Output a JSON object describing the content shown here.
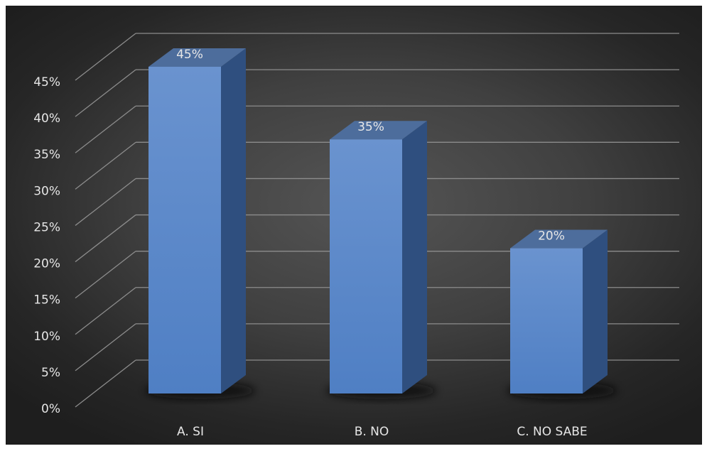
{
  "chart_data": {
    "type": "bar",
    "categories": [
      "A. SI",
      "B. NO",
      "C. NO SABE"
    ],
    "values": [
      45,
      35,
      20
    ],
    "data_labels": [
      "45%",
      "35%",
      "20%"
    ],
    "title": "",
    "xlabel": "",
    "ylabel": "",
    "ylim": [
      0,
      45
    ],
    "y_ticks": [
      "0%",
      "5%",
      "10%",
      "15%",
      "20%",
      "25%",
      "30%",
      "35%",
      "40%",
      "45%"
    ],
    "grid": true,
    "style": "3d-column",
    "colors": {
      "bar_front": "#4f7fc4",
      "bar_front_light": "#6a93cf",
      "bar_side": "#2f4f7f",
      "bar_top": "#4d6d9c",
      "background": "#3c3c3c",
      "gridline": "#8c8c8c",
      "text": "#e6e6e6"
    }
  }
}
